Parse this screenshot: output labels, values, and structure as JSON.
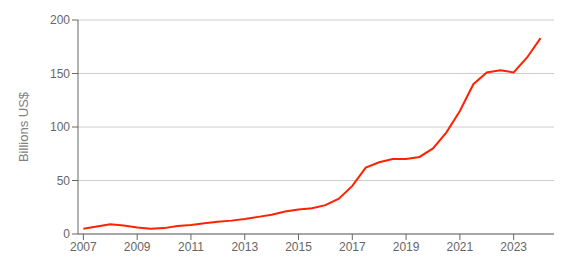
{
  "chart_data": {
    "type": "line",
    "ylabel": "Billions US$",
    "x": [
      2007,
      2007.5,
      2008,
      2008.5,
      2009,
      2009.5,
      2010,
      2010.5,
      2011,
      2011.5,
      2012,
      2012.5,
      2013,
      2013.5,
      2014,
      2014.5,
      2015,
      2015.5,
      2016,
      2016.5,
      2017,
      2017.5,
      2018,
      2018.5,
      2019,
      2019.5,
      2020,
      2020.5,
      2021,
      2021.5,
      2022,
      2022.5,
      2023,
      2023.5,
      2024
    ],
    "values": [
      5,
      7,
      9,
      8,
      6,
      5,
      5.5,
      7.5,
      8.5,
      10,
      11.5,
      12.5,
      14,
      16,
      18,
      21,
      23,
      24,
      27,
      33,
      45,
      62,
      67,
      70,
      70,
      72,
      80,
      95,
      115,
      140,
      151,
      153,
      151,
      165,
      183
    ],
    "color": "#ff2200",
    "xlim": [
      2006.8,
      2024.5
    ],
    "ylim": [
      0,
      200
    ],
    "xticks": [
      2007,
      2009,
      2011,
      2013,
      2015,
      2017,
      2019,
      2021,
      2023
    ],
    "yticks": [
      0,
      50,
      100,
      150,
      200
    ],
    "grid": true
  }
}
